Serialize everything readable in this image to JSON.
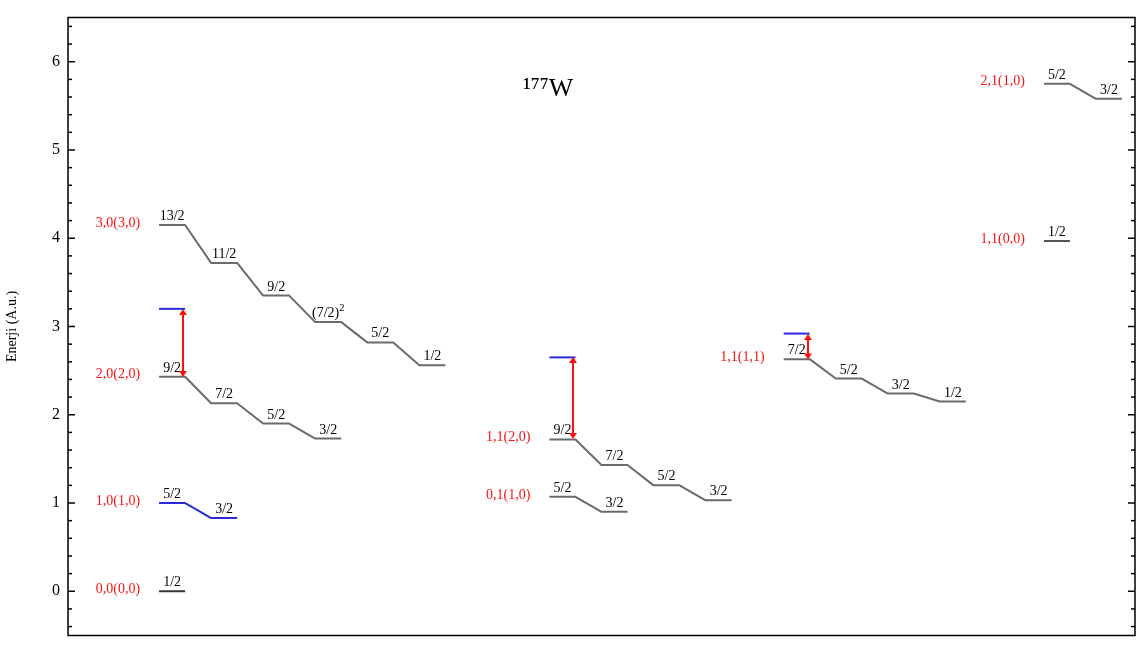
{
  "chart_data": {
    "type": "line",
    "title": "¹⁷⁷W",
    "ylabel": "Enerji (A.u.)",
    "categories": [
      null,
      null,
      null,
      null,
      null,
      null,
      null,
      null,
      null,
      null,
      null,
      null,
      null,
      null,
      null,
      null,
      null,
      null,
      null,
      null,
      null,
      null,
      null,
      null,
      null,
      null,
      null,
      null,
      null,
      null,
      null,
      null,
      null,
      null,
      null,
      null,
      null,
      null,
      null,
      null,
      null
    ],
    "ylim": [
      -0.5,
      6.5
    ],
    "yticks": [
      {
        "value": -0.4,
        "label": null
      },
      {
        "value": -0.2,
        "label": null
      },
      0,
      {
        "value": 0.2,
        "label": null
      },
      {
        "value": 0.4,
        "label": null
      },
      {
        "value": 0.6,
        "label": null
      },
      {
        "value": 0.8,
        "label": null
      },
      1,
      {
        "value": 1.2,
        "label": null
      },
      {
        "value": 1.4,
        "label": null
      },
      {
        "value": 1.6,
        "label": null
      },
      {
        "value": 1.8,
        "label": null
      },
      2,
      {
        "value": 2.2,
        "label": null
      },
      {
        "value": 2.4,
        "label": null
      },
      {
        "value": 2.6,
        "label": null
      },
      {
        "value": 2.8,
        "label": null
      },
      3,
      {
        "value": 3.2,
        "label": null
      },
      {
        "value": 3.4,
        "label": null
      },
      {
        "value": 3.6,
        "label": null
      },
      {
        "value": 3.8,
        "label": null
      },
      4,
      {
        "value": 4.2,
        "label": null
      },
      {
        "value": 4.4,
        "label": null
      },
      {
        "value": 4.6,
        "label": null
      },
      {
        "value": 4.8,
        "label": null
      },
      5,
      {
        "value": 5.2,
        "label": null
      },
      {
        "value": 5.4,
        "label": null
      },
      {
        "value": 5.6,
        "label": null
      },
      {
        "value": 5.8,
        "label": null
      },
      6,
      {
        "value": 6.2,
        "label": null
      },
      {
        "value": 6.4,
        "label": null
      }
    ],
    "annotations": [
      {
        "text": "1/2",
        "y": 0
      },
      {
        "text": "5/2",
        "y": 1.0
      },
      {
        "text": "3/2",
        "y": 0.83
      },
      {
        "text": "9/2",
        "y": 2.43
      },
      {
        "text": "7/2",
        "y": 2.13
      },
      {
        "text": "5/2",
        "y": 1.9
      },
      {
        "text": "3/2",
        "y": 1.73
      },
      {
        "text": "13/2",
        "y": 4.15
      },
      {
        "text": "11/2",
        "y": 3.72
      },
      {
        "text": "9/2",
        "y": 3.35
      },
      {
        "text": "(7/2)$^{2}$",
        "y": 3.05
      },
      {
        "text": "5/2",
        "y": 2.82
      },
      {
        "text": "1/2",
        "y": 2.56
      },
      {
        "text": "5/2",
        "y": 1.07
      },
      {
        "text": "3/2",
        "y": 0.9
      },
      {
        "text": "9/2",
        "y": 1.72
      },
      {
        "text": "7/2",
        "y": 1.43
      },
      {
        "text": "5/2",
        "y": 1.2
      },
      {
        "text": "3/2",
        "y": 1.03
      },
      {
        "text": "7/2",
        "y": 2.63
      },
      {
        "text": "5/2",
        "y": 2.41
      },
      {
        "text": "3/2",
        "y": 2.24
      },
      {
        "text": "1/2",
        "y": 2.15
      },
      {
        "text": "1/2",
        "y": 3.97
      },
      {
        "text": "5/2",
        "y": 5.75
      },
      {
        "text": "3/2",
        "y": 5.58
      }
    ],
    "grid": false,
    "legend": false,
    "marker": "none",
    "line_style": "solid",
    "tick_labels": "y",
    "series": [
      {
        "name": "0,0(0,0)",
        "color": "#333333",
        "values": [
          null,
          null,
          null,
          0,
          0,
          null,
          null,
          null,
          null,
          null,
          null,
          null,
          null,
          null,
          null,
          null,
          null,
          null,
          null,
          null,
          null,
          null,
          null,
          null,
          null,
          null,
          null,
          null,
          null,
          null,
          null,
          null,
          null,
          null,
          null,
          null,
          null,
          null,
          null,
          null,
          null
        ]
      },
      {
        "name": "1,0(1,0)",
        "color": "#2a2ad8",
        "values": [
          null,
          null,
          null,
          1.0,
          1.0,
          0.83,
          0.83,
          null,
          null,
          null,
          null,
          null,
          null,
          null,
          null,
          null,
          null,
          null,
          null,
          null,
          null,
          null,
          null,
          null,
          null,
          null,
          null,
          null,
          null,
          null,
          null,
          null,
          null,
          null,
          null,
          null,
          null,
          null,
          null,
          null,
          null
        ]
      },
      {
        "name": "2,0(2,0)",
        "color": "#6b6b6b",
        "values": [
          null,
          null,
          null,
          2.43,
          2.43,
          2.13,
          2.13,
          1.9,
          1.9,
          1.73,
          1.73,
          null,
          null,
          null,
          null,
          null,
          null,
          null,
          null,
          null,
          null,
          null,
          null,
          null,
          null,
          null,
          null,
          null,
          null,
          null,
          null,
          null,
          null,
          null,
          null,
          null,
          null,
          null,
          null,
          null,
          null
        ]
      },
      {
        "color": "#2a2ad8",
        "values": [
          null,
          null,
          null,
          3.2,
          3.2,
          null,
          null,
          null,
          null,
          null,
          null,
          null,
          null,
          null,
          null,
          null,
          null,
          null,
          null,
          null,
          null,
          null,
          null,
          null,
          null,
          null,
          null,
          null,
          null,
          null,
          null,
          null,
          null,
          null,
          null,
          null,
          null,
          null,
          null,
          null,
          null
        ]
      },
      {
        "name": "3,0(3,0)",
        "color": "#6b6b6b",
        "values": [
          null,
          null,
          null,
          4.15,
          4.15,
          3.72,
          3.72,
          3.35,
          3.35,
          3.05,
          3.05,
          2.82,
          2.82,
          2.56,
          2.56,
          null,
          null,
          null,
          null,
          null,
          null,
          null,
          null,
          null,
          null,
          null,
          null,
          null,
          null,
          null,
          null,
          null,
          null,
          null,
          null,
          null,
          null,
          null,
          null,
          null,
          null
        ]
      },
      {
        "name": "0,1(1,0)",
        "color": "#6b6b6b",
        "values": [
          null,
          null,
          null,
          null,
          null,
          null,
          null,
          null,
          null,
          null,
          null,
          null,
          null,
          null,
          null,
          null,
          null,
          null,
          1.07,
          1.07,
          0.9,
          0.9,
          null,
          null,
          null,
          null,
          null,
          null,
          null,
          null,
          null,
          null,
          null,
          null,
          null,
          null,
          null,
          null,
          null,
          null,
          null
        ]
      },
      {
        "name": "1,1(2,0)",
        "color": "#6b6b6b",
        "values": [
          null,
          null,
          null,
          null,
          null,
          null,
          null,
          null,
          null,
          null,
          null,
          null,
          null,
          null,
          null,
          null,
          null,
          null,
          1.72,
          1.72,
          1.43,
          1.43,
          1.2,
          1.2,
          1.03,
          1.03,
          null,
          null,
          null,
          null,
          null,
          null,
          null,
          null,
          null,
          null,
          null,
          null,
          null,
          null,
          null
        ]
      },
      {
        "color": "#2a2ad8",
        "values": [
          null,
          null,
          null,
          null,
          null,
          null,
          null,
          null,
          null,
          null,
          null,
          null,
          null,
          null,
          null,
          null,
          null,
          null,
          2.65,
          2.65,
          null,
          null,
          null,
          null,
          null,
          null,
          null,
          null,
          null,
          null,
          null,
          null,
          null,
          null,
          null,
          null,
          null,
          null,
          null,
          null,
          null
        ]
      },
      {
        "name": "1,1(1,1)",
        "color": "#6b6b6b",
        "values": [
          null,
          null,
          null,
          null,
          null,
          null,
          null,
          null,
          null,
          null,
          null,
          null,
          null,
          null,
          null,
          null,
          null,
          null,
          null,
          null,
          null,
          null,
          null,
          null,
          null,
          null,
          null,
          2.63,
          2.63,
          2.41,
          2.41,
          2.24,
          2.24,
          2.15,
          2.15,
          null,
          null,
          null,
          null,
          null,
          null
        ]
      },
      {
        "color": "#2a2ad8",
        "values": [
          null,
          null,
          null,
          null,
          null,
          null,
          null,
          null,
          null,
          null,
          null,
          null,
          null,
          null,
          null,
          null,
          null,
          null,
          null,
          null,
          null,
          null,
          null,
          null,
          null,
          null,
          null,
          2.92,
          2.92,
          null,
          null,
          null,
          null,
          null,
          null,
          null,
          null,
          null,
          null,
          null,
          null
        ]
      },
      {
        "name": "1,1(0,0)",
        "color": "#555555",
        "values": [
          null,
          null,
          null,
          null,
          null,
          null,
          null,
          null,
          null,
          null,
          null,
          null,
          null,
          null,
          null,
          null,
          null,
          null,
          null,
          null,
          null,
          null,
          null,
          null,
          null,
          null,
          null,
          null,
          null,
          null,
          null,
          null,
          null,
          null,
          null,
          null,
          null,
          3.97,
          3.97,
          null,
          null
        ]
      },
      {
        "name": "2,1(1,0)",
        "color": "#6b6b6b",
        "values": [
          null,
          null,
          null,
          null,
          null,
          null,
          null,
          null,
          null,
          null,
          null,
          null,
          null,
          null,
          null,
          null,
          null,
          null,
          null,
          null,
          null,
          null,
          null,
          null,
          null,
          null,
          null,
          null,
          null,
          null,
          null,
          null,
          null,
          null,
          null,
          null,
          null,
          5.75,
          5.75,
          5.58,
          5.58
        ]
      }
    ]
  }
}
